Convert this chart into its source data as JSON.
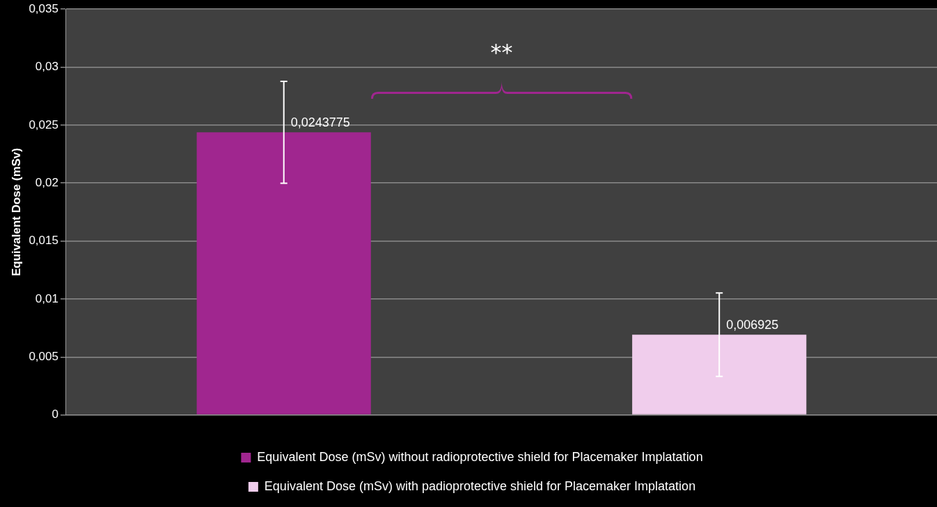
{
  "chart_data": {
    "type": "bar",
    "ylabel": "Equivalent Dose (mSv)",
    "categories": [
      null,
      null
    ],
    "series": [
      {
        "name": "Equivalent Dose (mSv) without radioprotective shield for Placemaker Implatation",
        "color": "#a0268f",
        "values": [
          0.0243775,
          null
        ],
        "errors": [
          0.0044,
          null
        ],
        "value_labels": [
          "0,0243775",
          null
        ]
      },
      {
        "name": "Equivalent Dose (mSv) with padioprotective shield for Placemaker Implatation",
        "color": "#f0cdec",
        "values": [
          null,
          0.006925
        ],
        "errors": [
          null,
          0.0036
        ],
        "value_labels": [
          null,
          "0,006925"
        ]
      }
    ],
    "ylim": [
      0,
      0.035
    ],
    "yticks": [
      0,
      {
        "value": 0.005,
        "label": "0,005"
      },
      {
        "value": 0.01,
        "label": "0,01"
      },
      {
        "value": 0.015,
        "label": "0,015"
      },
      {
        "value": 0.02,
        "label": "0,02"
      },
      {
        "value": 0.025,
        "label": "0,025"
      },
      {
        "value": 0.03,
        "label": "0,03"
      },
      {
        "value": 0.035,
        "label": "0,035"
      }
    ],
    "grid": "y",
    "legend": "bottom",
    "annotations": [
      "**"
    ]
  }
}
